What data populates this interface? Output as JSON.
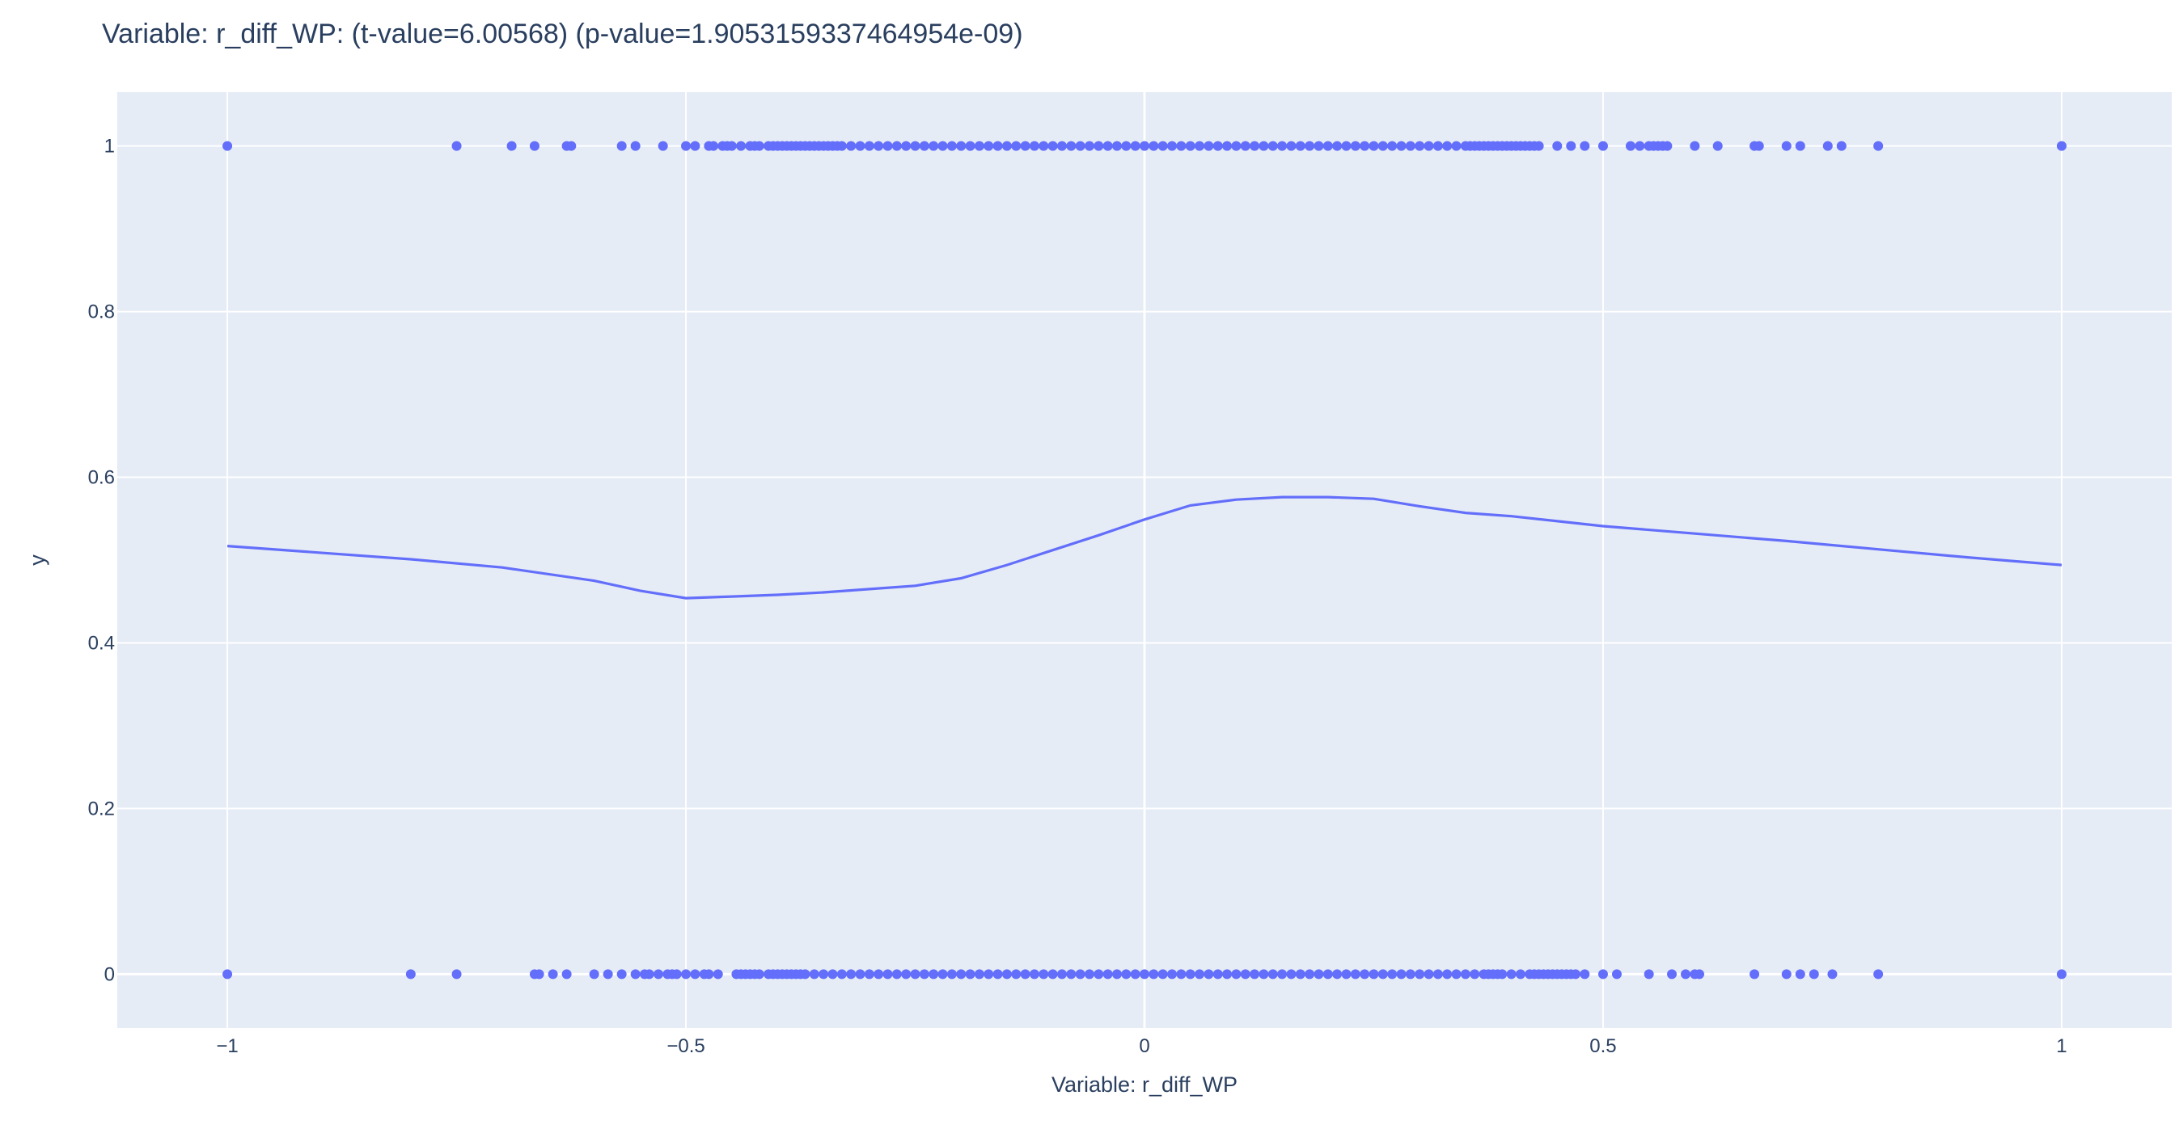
{
  "chart_data": {
    "type": "scatter",
    "title": "Variable: r_diff_WP: (t-value=6.00568) (p-value=1.9053159337464954e-09)",
    "xlabel": "Variable: r_diff_WP",
    "ylabel": "y",
    "xlim": [
      -1.12,
      1.12
    ],
    "ylim": [
      -0.065,
      1.065
    ],
    "x_ticks": [
      -1,
      -0.5,
      0,
      0.5,
      1
    ],
    "x_tick_labels": [
      "−1",
      "−0.5",
      "0",
      "0.5",
      "1"
    ],
    "y_ticks": [
      0,
      0.2,
      0.4,
      0.6,
      0.8,
      1
    ],
    "y_tick_labels": [
      "0",
      "0.2",
      "0.4",
      "0.6",
      "0.8",
      "1"
    ],
    "grid": true,
    "colors": {
      "plot_background": "#e5ecf6",
      "grid": "#ffffff",
      "series": "#636efa",
      "text": "#2a3f5f"
    },
    "series": [
      {
        "mode": "markers",
        "points_y1": {
          "y": 1,
          "x": [
            -1,
            -0.75,
            -0.69,
            -0.665,
            -0.63,
            -0.625,
            -0.57,
            -0.555,
            -0.525,
            -0.5,
            -0.49,
            -0.475,
            -0.47,
            -0.46,
            -0.455,
            -0.45,
            -0.44,
            -0.43,
            -0.425,
            -0.42,
            -0.41,
            -0.405,
            -0.4,
            -0.395,
            -0.39,
            -0.385,
            -0.38,
            -0.375,
            -0.37,
            -0.365,
            -0.36,
            -0.355,
            -0.35,
            -0.345,
            -0.34,
            -0.335,
            -0.33,
            -0.32,
            -0.31,
            -0.3,
            -0.29,
            -0.28,
            -0.27,
            -0.26,
            -0.25,
            -0.24,
            -0.23,
            -0.22,
            -0.21,
            -0.2,
            -0.19,
            -0.18,
            -0.17,
            -0.16,
            -0.15,
            -0.14,
            -0.13,
            -0.12,
            -0.11,
            -0.1,
            -0.09,
            -0.08,
            -0.07,
            -0.06,
            -0.05,
            -0.04,
            -0.03,
            -0.02,
            -0.01,
            0,
            0.01,
            0.02,
            0.03,
            0.04,
            0.05,
            0.06,
            0.07,
            0.08,
            0.09,
            0.1,
            0.11,
            0.12,
            0.13,
            0.14,
            0.15,
            0.16,
            0.17,
            0.18,
            0.19,
            0.2,
            0.21,
            0.22,
            0.23,
            0.24,
            0.25,
            0.26,
            0.27,
            0.28,
            0.29,
            0.3,
            0.31,
            0.32,
            0.33,
            0.34,
            0.35,
            0.355,
            0.36,
            0.365,
            0.37,
            0.375,
            0.38,
            0.385,
            0.39,
            0.395,
            0.4,
            0.405,
            0.41,
            0.415,
            0.42,
            0.425,
            0.43,
            0.45,
            0.465,
            0.48,
            0.5,
            0.53,
            0.54,
            0.55,
            0.555,
            0.56,
            0.565,
            0.57,
            0.6,
            0.625,
            0.665,
            0.67,
            0.7,
            0.715,
            0.745,
            0.76,
            0.8,
            1
          ]
        },
        "points_y0": {
          "y": 0,
          "x": [
            -1,
            -0.8,
            -0.75,
            -0.665,
            -0.66,
            -0.645,
            -0.63,
            -0.6,
            -0.585,
            -0.57,
            -0.555,
            -0.545,
            -0.54,
            -0.53,
            -0.52,
            -0.515,
            -0.51,
            -0.5,
            -0.49,
            -0.48,
            -0.475,
            -0.465,
            -0.445,
            -0.44,
            -0.435,
            -0.43,
            -0.425,
            -0.42,
            -0.41,
            -0.405,
            -0.4,
            -0.395,
            -0.39,
            -0.385,
            -0.38,
            -0.375,
            -0.37,
            -0.36,
            -0.35,
            -0.34,
            -0.33,
            -0.32,
            -0.31,
            -0.3,
            -0.29,
            -0.28,
            -0.27,
            -0.26,
            -0.25,
            -0.24,
            -0.23,
            -0.22,
            -0.21,
            -0.2,
            -0.19,
            -0.18,
            -0.17,
            -0.16,
            -0.15,
            -0.14,
            -0.13,
            -0.12,
            -0.11,
            -0.1,
            -0.09,
            -0.08,
            -0.07,
            -0.06,
            -0.05,
            -0.04,
            -0.03,
            -0.02,
            -0.01,
            0,
            0.01,
            0.02,
            0.03,
            0.04,
            0.05,
            0.06,
            0.07,
            0.08,
            0.09,
            0.1,
            0.11,
            0.12,
            0.13,
            0.14,
            0.15,
            0.16,
            0.17,
            0.18,
            0.19,
            0.2,
            0.21,
            0.22,
            0.23,
            0.24,
            0.25,
            0.26,
            0.27,
            0.28,
            0.29,
            0.3,
            0.31,
            0.32,
            0.33,
            0.34,
            0.35,
            0.36,
            0.37,
            0.375,
            0.38,
            0.385,
            0.39,
            0.4,
            0.41,
            0.42,
            0.425,
            0.43,
            0.435,
            0.44,
            0.445,
            0.45,
            0.455,
            0.46,
            0.465,
            0.47,
            0.48,
            0.5,
            0.515,
            0.55,
            0.575,
            0.59,
            0.6,
            0.605,
            0.665,
            0.7,
            0.715,
            0.73,
            0.75,
            0.8,
            1
          ]
        }
      },
      {
        "mode": "lines",
        "x": [
          -1,
          -0.9,
          -0.8,
          -0.7,
          -0.6,
          -0.55,
          -0.5,
          -0.45,
          -0.4,
          -0.35,
          -0.3,
          -0.25,
          -0.2,
          -0.15,
          -0.1,
          -0.05,
          0,
          0.05,
          0.1,
          0.15,
          0.2,
          0.25,
          0.3,
          0.35,
          0.4,
          0.5,
          0.6,
          0.7,
          0.8,
          0.9,
          1
        ],
        "y": [
          0.517,
          0.509,
          0.501,
          0.491,
          0.475,
          0.463,
          0.454,
          0.456,
          0.458,
          0.461,
          0.465,
          0.469,
          0.478,
          0.494,
          0.512,
          0.53,
          0.549,
          0.566,
          0.573,
          0.576,
          0.576,
          0.574,
          0.565,
          0.557,
          0.553,
          0.541,
          0.532,
          0.523,
          0.513,
          0.503,
          0.494
        ]
      }
    ]
  }
}
